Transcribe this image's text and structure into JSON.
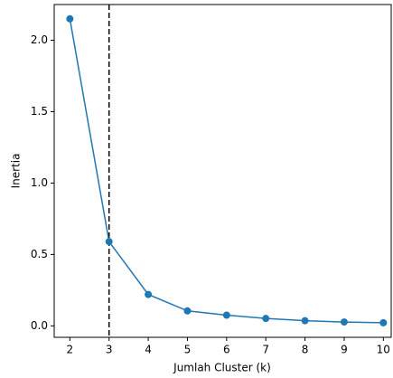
{
  "chart_data": {
    "type": "line",
    "x_label": "Jumlah Cluster (k)",
    "y_label": "Inertia",
    "x": [
      2,
      3,
      4,
      5,
      6,
      7,
      8,
      9,
      10
    ],
    "series": [
      {
        "color": "#1f77b4",
        "values": [
          2.15,
          0.59,
          0.22,
          0.105,
          0.075,
          0.052,
          0.036,
          0.027,
          0.022
        ]
      }
    ],
    "vline": {
      "x": 3,
      "color": "#000000",
      "style": "dashed"
    },
    "xlim": [
      1.6,
      10.2
    ],
    "ylim": [
      -0.08,
      2.25
    ],
    "xticks": [
      2,
      3,
      4,
      5,
      6,
      7,
      8,
      9,
      10
    ],
    "yticks": [
      {
        "value": 0,
        "label": "0.0"
      },
      {
        "value": 0.5,
        "label": "0.5"
      },
      {
        "value": 1,
        "label": "1.0"
      },
      {
        "value": 1.5,
        "label": "1.5"
      },
      {
        "value": 2,
        "label": "2.0"
      }
    ],
    "grid": false
  }
}
